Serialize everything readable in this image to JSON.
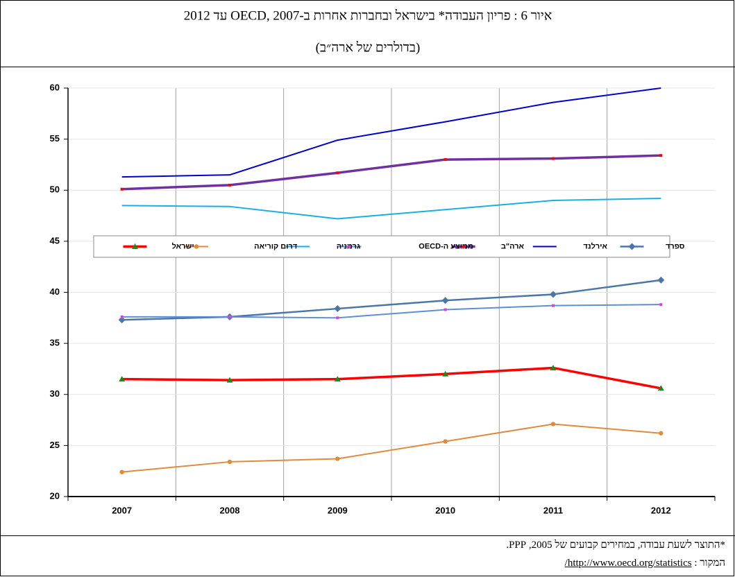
{
  "chart_data": {
    "type": "line",
    "title": "איור 6 : פריון העבודה* בישראל ובחברות אחרות ב-OECD, 2007 עד 2012",
    "subtitle": "(בדולרים של ארה״ב)",
    "categories": [
      "2007",
      "2008",
      "2009",
      "2010",
      "2011",
      "2012"
    ],
    "ylim": [
      20,
      60
    ],
    "yticks": [
      20,
      25,
      30,
      35,
      40,
      45,
      50,
      55,
      60
    ],
    "grid": true,
    "series": [
      {
        "name": "ספרד",
        "color": "#4a76a8",
        "marker": "diamond",
        "marker_color": "#4a76a8",
        "width": 2.5,
        "values": [
          37.3,
          37.6,
          38.4,
          39.2,
          39.8,
          41.2
        ]
      },
      {
        "name": "אירלנד",
        "color": "#0000cc",
        "marker": "none",
        "marker_color": "#0000cc",
        "width": 2,
        "values": [
          51.3,
          51.5,
          54.9,
          56.7,
          58.6,
          60.0
        ]
      },
      {
        "name": "ארה\"ב",
        "color": "#7030a0",
        "marker": "square",
        "marker_color": "#ff0000",
        "width": 3.5,
        "values": [
          50.1,
          50.5,
          51.7,
          53.0,
          53.1,
          53.4
        ]
      },
      {
        "name": "ממוצע ה-OECD",
        "color": "#5b8fd6",
        "marker": "square",
        "marker_color": "#e040e0",
        "width": 2,
        "values": [
          37.6,
          37.6,
          37.5,
          38.3,
          38.7,
          38.8
        ]
      },
      {
        "name": "גרמניה",
        "color": "#1aaee6",
        "marker": "none",
        "marker_color": "#1aaee6",
        "width": 2,
        "values": [
          48.5,
          48.4,
          47.2,
          48.1,
          49.0,
          49.2
        ]
      },
      {
        "name": "דרום קוריאה",
        "color": "#e08a3c",
        "marker": "circle",
        "marker_color": "#e08a3c",
        "width": 2,
        "values": [
          22.4,
          23.4,
          23.7,
          25.4,
          27.1,
          26.2
        ]
      },
      {
        "name": "ישראל",
        "color": "#ff0000",
        "marker": "triangle",
        "marker_color": "#1a8a1a",
        "width": 3.5,
        "values": [
          31.5,
          31.4,
          31.5,
          32.0,
          32.6,
          30.6
        ]
      }
    ]
  },
  "footnote": "*התוצר לשעת עבודה, במחירים קבועים של 2005, PPP.",
  "source_label": "המקור :",
  "source_url": "http://www.oecd.org/statistics/"
}
